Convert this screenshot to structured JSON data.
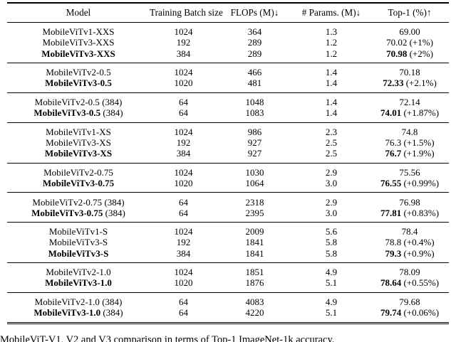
{
  "colors": {
    "text": "#000000",
    "background": "#ffffff",
    "rule": "#000000"
  },
  "caption": "MobileViT-V1, V2 and V3 comparison in terms of Top-1 ImageNet-1k accuracy.",
  "table": {
    "columns": [
      "Model",
      "Training Batch size",
      "FLOPs (M)↓",
      "# Params. (M)↓",
      "Top-1 (%)↑"
    ],
    "groups": [
      {
        "rows": [
          {
            "model": "MobileViTv1-XXS",
            "suffix": "",
            "bold": false,
            "batch": "1024",
            "flops": "364",
            "params": "1.3",
            "top1": "69.00",
            "delta": ""
          },
          {
            "model": "MobileViTv3-XXS",
            "suffix": "",
            "bold": false,
            "batch": "192",
            "flops": "289",
            "params": "1.2",
            "top1": "70.02",
            "delta": " (+1%)"
          },
          {
            "model": "MobileViTv3-XXS",
            "suffix": "",
            "bold": true,
            "batch": "384",
            "flops": "289",
            "params": "1.2",
            "top1": "70.98",
            "delta": " (+2%)"
          }
        ]
      },
      {
        "rows": [
          {
            "model": "MobileViTv2-0.5",
            "suffix": "",
            "bold": false,
            "batch": "1024",
            "flops": "466",
            "params": "1.4",
            "top1": "70.18",
            "delta": ""
          },
          {
            "model": "MobileViTv3-0.5",
            "suffix": "",
            "bold": true,
            "batch": "1020",
            "flops": "481",
            "params": "1.4",
            "top1": "72.33",
            "delta": " (+2.1%)"
          }
        ]
      },
      {
        "rows": [
          {
            "model": "MobileViTv2-0.5",
            "suffix": " (384)",
            "bold": false,
            "batch": "64",
            "flops": "1048",
            "params": "1.4",
            "top1": "72.14",
            "delta": ""
          },
          {
            "model": "MobileViTv3-0.5",
            "suffix": " (384)",
            "bold": true,
            "batch": "64",
            "flops": "1083",
            "params": "1.4",
            "top1": "74.01",
            "delta": " (+1.87%)"
          }
        ]
      },
      {
        "rows": [
          {
            "model": "MobileViTv1-XS",
            "suffix": "",
            "bold": false,
            "batch": "1024",
            "flops": "986",
            "params": "2.3",
            "top1": "74.8",
            "delta": ""
          },
          {
            "model": "MobileViTv3-XS",
            "suffix": "",
            "bold": false,
            "batch": "192",
            "flops": "927",
            "params": "2.5",
            "top1": "76.3",
            "delta": " (+1.5%)"
          },
          {
            "model": "MobileViTv3-XS",
            "suffix": "",
            "bold": true,
            "batch": "384",
            "flops": "927",
            "params": "2.5",
            "top1": "76.7",
            "delta": " (+1.9%)"
          }
        ]
      },
      {
        "rows": [
          {
            "model": "MobileViTv2-0.75",
            "suffix": "",
            "bold": false,
            "batch": "1024",
            "flops": "1030",
            "params": "2.9",
            "top1": "75.56",
            "delta": ""
          },
          {
            "model": "MobileViTv3-0.75",
            "suffix": "",
            "bold": true,
            "batch": "1020",
            "flops": "1064",
            "params": "3.0",
            "top1": "76.55",
            "delta": " (+0.99%)"
          }
        ]
      },
      {
        "rows": [
          {
            "model": "MobileViTv2-0.75",
            "suffix": " (384)",
            "bold": false,
            "batch": "64",
            "flops": "2318",
            "params": "2.9",
            "top1": "76.98",
            "delta": ""
          },
          {
            "model": "MobileViTv3-0.75",
            "suffix": " (384)",
            "bold": true,
            "batch": "64",
            "flops": "2395",
            "params": "3.0",
            "top1": "77.81",
            "delta": " (+0.83%)"
          }
        ]
      },
      {
        "rows": [
          {
            "model": "MobileViTv1-S",
            "suffix": "",
            "bold": false,
            "batch": "1024",
            "flops": "2009",
            "params": "5.6",
            "top1": "78.4",
            "delta": ""
          },
          {
            "model": "MobileViTv3-S",
            "suffix": "",
            "bold": false,
            "batch": "192",
            "flops": "1841",
            "params": "5.8",
            "top1": "78.8",
            "delta": " (+0.4%)"
          },
          {
            "model": "MobileViTv3-S",
            "suffix": "",
            "bold": true,
            "batch": "384",
            "flops": "1841",
            "params": "5.8",
            "top1": "79.3",
            "delta": " (+0.9%)"
          }
        ]
      },
      {
        "rows": [
          {
            "model": "MobileViTv2-1.0",
            "suffix": "",
            "bold": false,
            "batch": "1024",
            "flops": "1851",
            "params": "4.9",
            "top1": "78.09",
            "delta": ""
          },
          {
            "model": "MobileViTv3-1.0",
            "suffix": "",
            "bold": true,
            "batch": "1020",
            "flops": "1876",
            "params": "5.1",
            "top1": "78.64",
            "delta": " (+0.55%)"
          }
        ]
      },
      {
        "rows": [
          {
            "model": "MobileViTv2-1.0",
            "suffix": " (384)",
            "bold": false,
            "batch": "64",
            "flops": "4083",
            "params": "4.9",
            "top1": "79.68",
            "delta": ""
          },
          {
            "model": "MobileViTv3-1.0",
            "suffix": " (384)",
            "bold": true,
            "batch": "64",
            "flops": "4220",
            "params": "5.1",
            "top1": "79.74",
            "delta": " (+0.06%)"
          }
        ]
      }
    ]
  }
}
